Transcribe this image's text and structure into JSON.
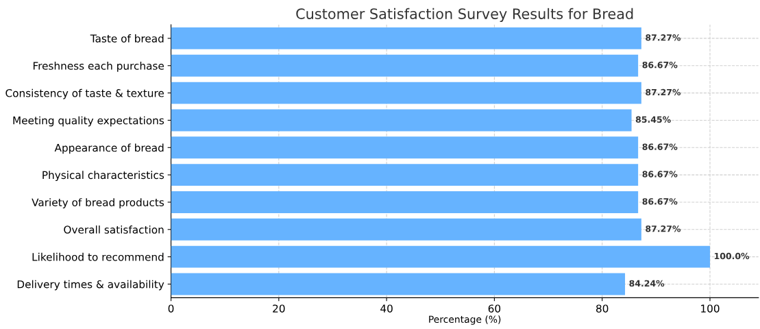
{
  "chart_data": {
    "type": "bar",
    "orientation": "horizontal",
    "title": "Customer Satisfaction Survey Results for Bread",
    "xlabel": "Percentage (%)",
    "categories": [
      "Taste of bread",
      "Freshness each purchase",
      "Consistency of taste & texture",
      "Meeting quality expectations",
      "Appearance of bread",
      "Physical characteristics",
      "Variety of bread products",
      "Overall satisfaction",
      "Likelihood to recommend",
      "Delivery times & availability"
    ],
    "values": [
      87.27,
      86.67,
      87.27,
      85.45,
      86.67,
      86.67,
      86.67,
      87.27,
      100.0,
      84.24
    ],
    "value_labels": [
      "87.27%",
      "86.67%",
      "87.27%",
      "85.45%",
      "86.67%",
      "86.67%",
      "86.67%",
      "87.27%",
      "100.0%",
      "84.24%"
    ],
    "color": "#66b3ff",
    "xlim": [
      0,
      109
    ],
    "xticks": [
      0,
      20,
      40,
      60,
      80,
      100
    ],
    "grid": true
  }
}
